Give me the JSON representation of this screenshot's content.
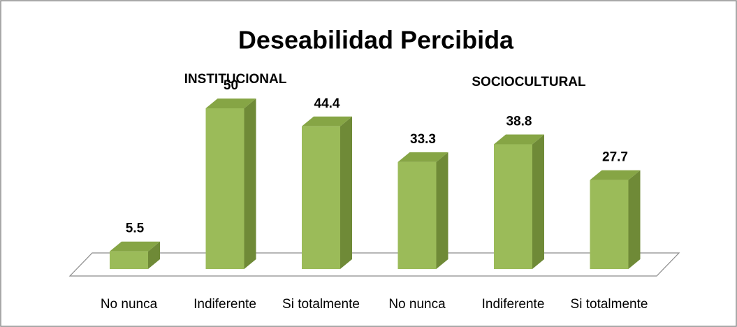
{
  "chart_data": {
    "type": "bar3d",
    "title": "Deseabilidad Percibida",
    "annotations": [
      "INSTITUCIONAL",
      "SOCIOCULTURAL"
    ],
    "categories": [
      "No nunca",
      "Indiferente",
      "Si totalmente",
      "No nunca",
      "Indiferente",
      "Si totalmente"
    ],
    "values": [
      5.5,
      50,
      44.4,
      33.3,
      38.8,
      27.7
    ],
    "color": "#9bbb59"
  }
}
